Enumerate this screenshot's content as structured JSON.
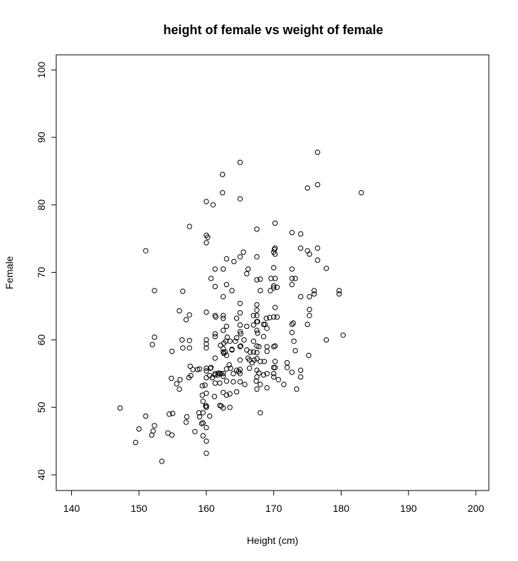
{
  "chart_data": {
    "type": "scatter",
    "title": "height of female vs weight of female",
    "xlabel": "Height (cm)",
    "ylabel": "Female",
    "xlim": [
      140,
      200
    ],
    "ylim": [
      40,
      100
    ],
    "xticks": [
      "140",
      "150",
      "160",
      "170",
      "180",
      "190",
      "200"
    ],
    "yticks": [
      "40",
      "50",
      "60",
      "70",
      "80",
      "90",
      "100"
    ],
    "grid": false,
    "marker": "open-circle",
    "series": [
      {
        "points": [
          [
            147.2,
            49.9
          ],
          [
            149.5,
            44.8
          ],
          [
            150.0,
            46.8
          ],
          [
            151.0,
            73.2
          ],
          [
            151.0,
            48.7
          ],
          [
            151.9,
            45.9
          ],
          [
            152.0,
            59.3
          ],
          [
            152.1,
            46.5
          ],
          [
            152.3,
            47.3
          ],
          [
            152.3,
            60.4
          ],
          [
            152.3,
            67.3
          ],
          [
            153.4,
            42.0
          ],
          [
            154.3,
            46.2
          ],
          [
            154.5,
            49.0
          ],
          [
            154.8,
            54.3
          ],
          [
            154.9,
            45.9
          ],
          [
            154.9,
            58.3
          ],
          [
            155.0,
            49.1
          ],
          [
            155.6,
            53.5
          ],
          [
            156.0,
            52.7
          ],
          [
            156.0,
            64.3
          ],
          [
            156.1,
            54.1
          ],
          [
            156.4,
            60.0
          ],
          [
            156.5,
            67.2
          ],
          [
            156.5,
            58.8
          ],
          [
            157.0,
            63.0
          ],
          [
            157.0,
            47.8
          ],
          [
            157.1,
            48.6
          ],
          [
            157.4,
            54.4
          ],
          [
            157.5,
            59.9
          ],
          [
            157.5,
            63.7
          ],
          [
            157.5,
            76.8
          ],
          [
            157.5,
            58.8
          ],
          [
            157.6,
            56.1
          ],
          [
            157.7,
            54.7
          ],
          [
            158.0,
            55.6
          ],
          [
            158.3,
            46.4
          ],
          [
            158.7,
            55.6
          ],
          [
            158.9,
            49.2
          ],
          [
            159.0,
            48.6
          ],
          [
            159.0,
            55.7
          ],
          [
            159.3,
            47.6
          ],
          [
            159.4,
            51.8
          ],
          [
            159.4,
            53.2
          ],
          [
            159.5,
            47.7
          ],
          [
            159.5,
            45.8
          ],
          [
            159.5,
            50.9
          ],
          [
            159.5,
            49.2
          ],
          [
            159.8,
            53.3
          ],
          [
            159.9,
            50.2
          ],
          [
            160.0,
            80.5
          ],
          [
            160.0,
            75.5
          ],
          [
            160.0,
            74.4
          ],
          [
            160.0,
            64.1
          ],
          [
            160.0,
            60.0
          ],
          [
            160.0,
            59.4
          ],
          [
            160.0,
            58.8
          ],
          [
            160.0,
            55.4
          ],
          [
            160.0,
            54.4
          ],
          [
            160.0,
            52.1
          ],
          [
            160.0,
            50.2
          ],
          [
            160.0,
            47.0
          ],
          [
            160.0,
            45.0
          ],
          [
            160.0,
            43.2
          ],
          [
            160.0,
            55.8
          ],
          [
            160.0,
            50.0
          ],
          [
            160.2,
            75.2
          ],
          [
            160.5,
            48.7
          ],
          [
            160.5,
            54.7
          ],
          [
            160.6,
            55.8
          ],
          [
            160.7,
            69.1
          ],
          [
            160.7,
            55.9
          ],
          [
            160.9,
            54.4
          ],
          [
            161.0,
            80.0
          ],
          [
            161.2,
            51.6
          ],
          [
            161.3,
            67.9
          ],
          [
            161.3,
            63.6
          ],
          [
            161.4,
            63.4
          ],
          [
            161.3,
            70.5
          ],
          [
            161.3,
            60.9
          ],
          [
            161.3,
            60.5
          ],
          [
            161.3,
            57.3
          ],
          [
            161.3,
            55.0
          ],
          [
            161.3,
            54.8
          ],
          [
            161.3,
            53.6
          ],
          [
            161.7,
            54.8
          ],
          [
            161.8,
            55.1
          ],
          [
            162.0,
            53.6
          ],
          [
            162.0,
            50.3
          ],
          [
            162.0,
            55.0
          ],
          [
            162.1,
            59.2
          ],
          [
            162.2,
            50.2
          ],
          [
            162.2,
            55.0
          ],
          [
            162.4,
            81.8
          ],
          [
            162.4,
            84.5
          ],
          [
            162.5,
            70.5
          ],
          [
            162.5,
            66.4
          ],
          [
            162.5,
            63.6
          ],
          [
            162.5,
            63.2
          ],
          [
            162.5,
            61.4
          ],
          [
            162.5,
            58.7
          ],
          [
            162.5,
            58.2
          ],
          [
            162.5,
            55.0
          ],
          [
            162.5,
            54.6
          ],
          [
            162.5,
            52.2
          ],
          [
            162.5,
            49.9
          ],
          [
            162.6,
            59.5
          ],
          [
            162.6,
            58.0
          ],
          [
            162.8,
            58.2
          ],
          [
            162.9,
            59.8
          ],
          [
            163.0,
            72.0
          ],
          [
            163.0,
            68.2
          ],
          [
            163.0,
            62.0
          ],
          [
            163.0,
            57.7
          ],
          [
            163.0,
            55.7
          ],
          [
            163.0,
            53.9
          ],
          [
            163.0,
            51.8
          ],
          [
            163.1,
            60.4
          ],
          [
            163.4,
            56.3
          ],
          [
            163.5,
            59.8
          ],
          [
            163.5,
            52.0
          ],
          [
            163.5,
            50.0
          ],
          [
            163.6,
            55.8
          ],
          [
            163.8,
            58.6
          ],
          [
            163.8,
            67.3
          ],
          [
            163.8,
            58.5
          ],
          [
            164.0,
            55.0
          ],
          [
            164.0,
            53.8
          ],
          [
            164.1,
            71.6
          ],
          [
            164.3,
            59.8
          ],
          [
            164.5,
            63.2
          ],
          [
            164.5,
            60.3
          ],
          [
            164.5,
            55.5
          ],
          [
            164.5,
            52.3
          ],
          [
            164.8,
            55.3
          ],
          [
            165.0,
            86.3
          ],
          [
            165.0,
            80.9
          ],
          [
            165.0,
            72.3
          ],
          [
            165.0,
            65.4
          ],
          [
            165.0,
            64.0
          ],
          [
            165.0,
            62.2
          ],
          [
            165.0,
            61.2
          ],
          [
            165.0,
            59.0
          ],
          [
            165.0,
            57.0
          ],
          [
            165.0,
            55.6
          ],
          [
            165.0,
            55.0
          ],
          [
            165.0,
            53.8
          ],
          [
            165.1,
            60.9
          ],
          [
            165.1,
            59.1
          ],
          [
            165.5,
            73.0
          ],
          [
            165.6,
            60.0
          ],
          [
            165.7,
            53.4
          ],
          [
            166.0,
            58.5
          ],
          [
            166.0,
            69.8
          ],
          [
            166.0,
            62.0
          ],
          [
            166.2,
            57.3
          ],
          [
            166.2,
            70.5
          ],
          [
            166.4,
            55.8
          ],
          [
            166.4,
            57.0
          ],
          [
            166.5,
            58.2
          ],
          [
            166.8,
            56.6
          ],
          [
            167.0,
            62.2
          ],
          [
            167.0,
            63.6
          ],
          [
            167.0,
            59.8
          ],
          [
            167.0,
            58.2
          ],
          [
            167.1,
            57.0
          ],
          [
            167.4,
            53.9
          ],
          [
            167.5,
            76.4
          ],
          [
            167.5,
            72.3
          ],
          [
            167.5,
            68.9
          ],
          [
            167.5,
            65.2
          ],
          [
            167.5,
            64.4
          ],
          [
            167.5,
            63.6
          ],
          [
            167.5,
            62.7
          ],
          [
            167.5,
            61.4
          ],
          [
            167.5,
            59.1
          ],
          [
            167.5,
            58.1
          ],
          [
            167.5,
            57.2
          ],
          [
            167.5,
            55.5
          ],
          [
            167.5,
            54.5
          ],
          [
            167.5,
            52.7
          ],
          [
            167.6,
            61.0
          ],
          [
            167.6,
            62.7
          ],
          [
            167.8,
            55.1
          ],
          [
            167.8,
            59.0
          ],
          [
            168.0,
            56.8
          ],
          [
            168.0,
            49.2
          ],
          [
            168.0,
            53.4
          ],
          [
            168.0,
            67.3
          ],
          [
            168.0,
            69.0
          ],
          [
            168.5,
            54.8
          ],
          [
            168.5,
            60.5
          ],
          [
            168.5,
            62.3
          ],
          [
            168.6,
            56.8
          ],
          [
            168.7,
            62.3
          ],
          [
            168.9,
            63.2
          ],
          [
            169.0,
            61.7
          ],
          [
            169.0,
            59.0
          ],
          [
            169.0,
            58.3
          ],
          [
            169.0,
            55.0
          ],
          [
            169.0,
            52.9
          ],
          [
            169.4,
            63.3
          ],
          [
            169.5,
            67.3
          ],
          [
            169.6,
            69.1
          ],
          [
            170.0,
            73.0
          ],
          [
            170.0,
            70.7
          ],
          [
            170.0,
            68.0
          ],
          [
            170.0,
            67.7
          ],
          [
            170.0,
            63.4
          ],
          [
            170.0,
            59.0
          ],
          [
            170.0,
            55.9
          ],
          [
            170.0,
            55.0
          ],
          [
            170.0,
            54.5
          ],
          [
            170.1,
            73.4
          ],
          [
            170.2,
            69.1
          ],
          [
            170.2,
            72.7
          ],
          [
            170.2,
            77.3
          ],
          [
            170.2,
            73.6
          ],
          [
            170.2,
            64.8
          ],
          [
            170.2,
            59.1
          ],
          [
            170.2,
            56.8
          ],
          [
            170.2,
            55.9
          ],
          [
            170.5,
            67.8
          ],
          [
            170.5,
            63.4
          ],
          [
            170.7,
            54.1
          ],
          [
            171.5,
            53.4
          ],
          [
            172.0,
            55.9
          ],
          [
            172.0,
            56.6
          ],
          [
            172.7,
            75.9
          ],
          [
            172.7,
            70.5
          ],
          [
            172.7,
            69.1
          ],
          [
            172.7,
            68.2
          ],
          [
            172.7,
            62.3
          ],
          [
            172.7,
            61.1
          ],
          [
            172.7,
            55.2
          ],
          [
            172.9,
            62.5
          ],
          [
            173.0,
            59.8
          ],
          [
            173.2,
            69.1
          ],
          [
            173.2,
            58.4
          ],
          [
            173.4,
            52.7
          ],
          [
            174.0,
            75.7
          ],
          [
            174.0,
            73.6
          ],
          [
            174.0,
            55.5
          ],
          [
            174.0,
            54.5
          ],
          [
            174.0,
            66.4
          ],
          [
            175.0,
            82.5
          ],
          [
            175.0,
            73.2
          ],
          [
            175.0,
            62.3
          ],
          [
            175.2,
            57.7
          ],
          [
            175.3,
            72.7
          ],
          [
            175.3,
            66.4
          ],
          [
            175.3,
            64.5
          ],
          [
            175.3,
            63.6
          ],
          [
            176.0,
            67.3
          ],
          [
            176.0,
            66.8
          ],
          [
            176.5,
            87.8
          ],
          [
            176.5,
            83.0
          ],
          [
            176.5,
            73.6
          ],
          [
            176.5,
            71.8
          ],
          [
            177.8,
            70.6
          ],
          [
            177.8,
            60.0
          ],
          [
            179.7,
            67.3
          ],
          [
            179.7,
            66.8
          ],
          [
            180.3,
            60.7
          ],
          [
            183.0,
            81.8
          ]
        ]
      }
    ]
  }
}
